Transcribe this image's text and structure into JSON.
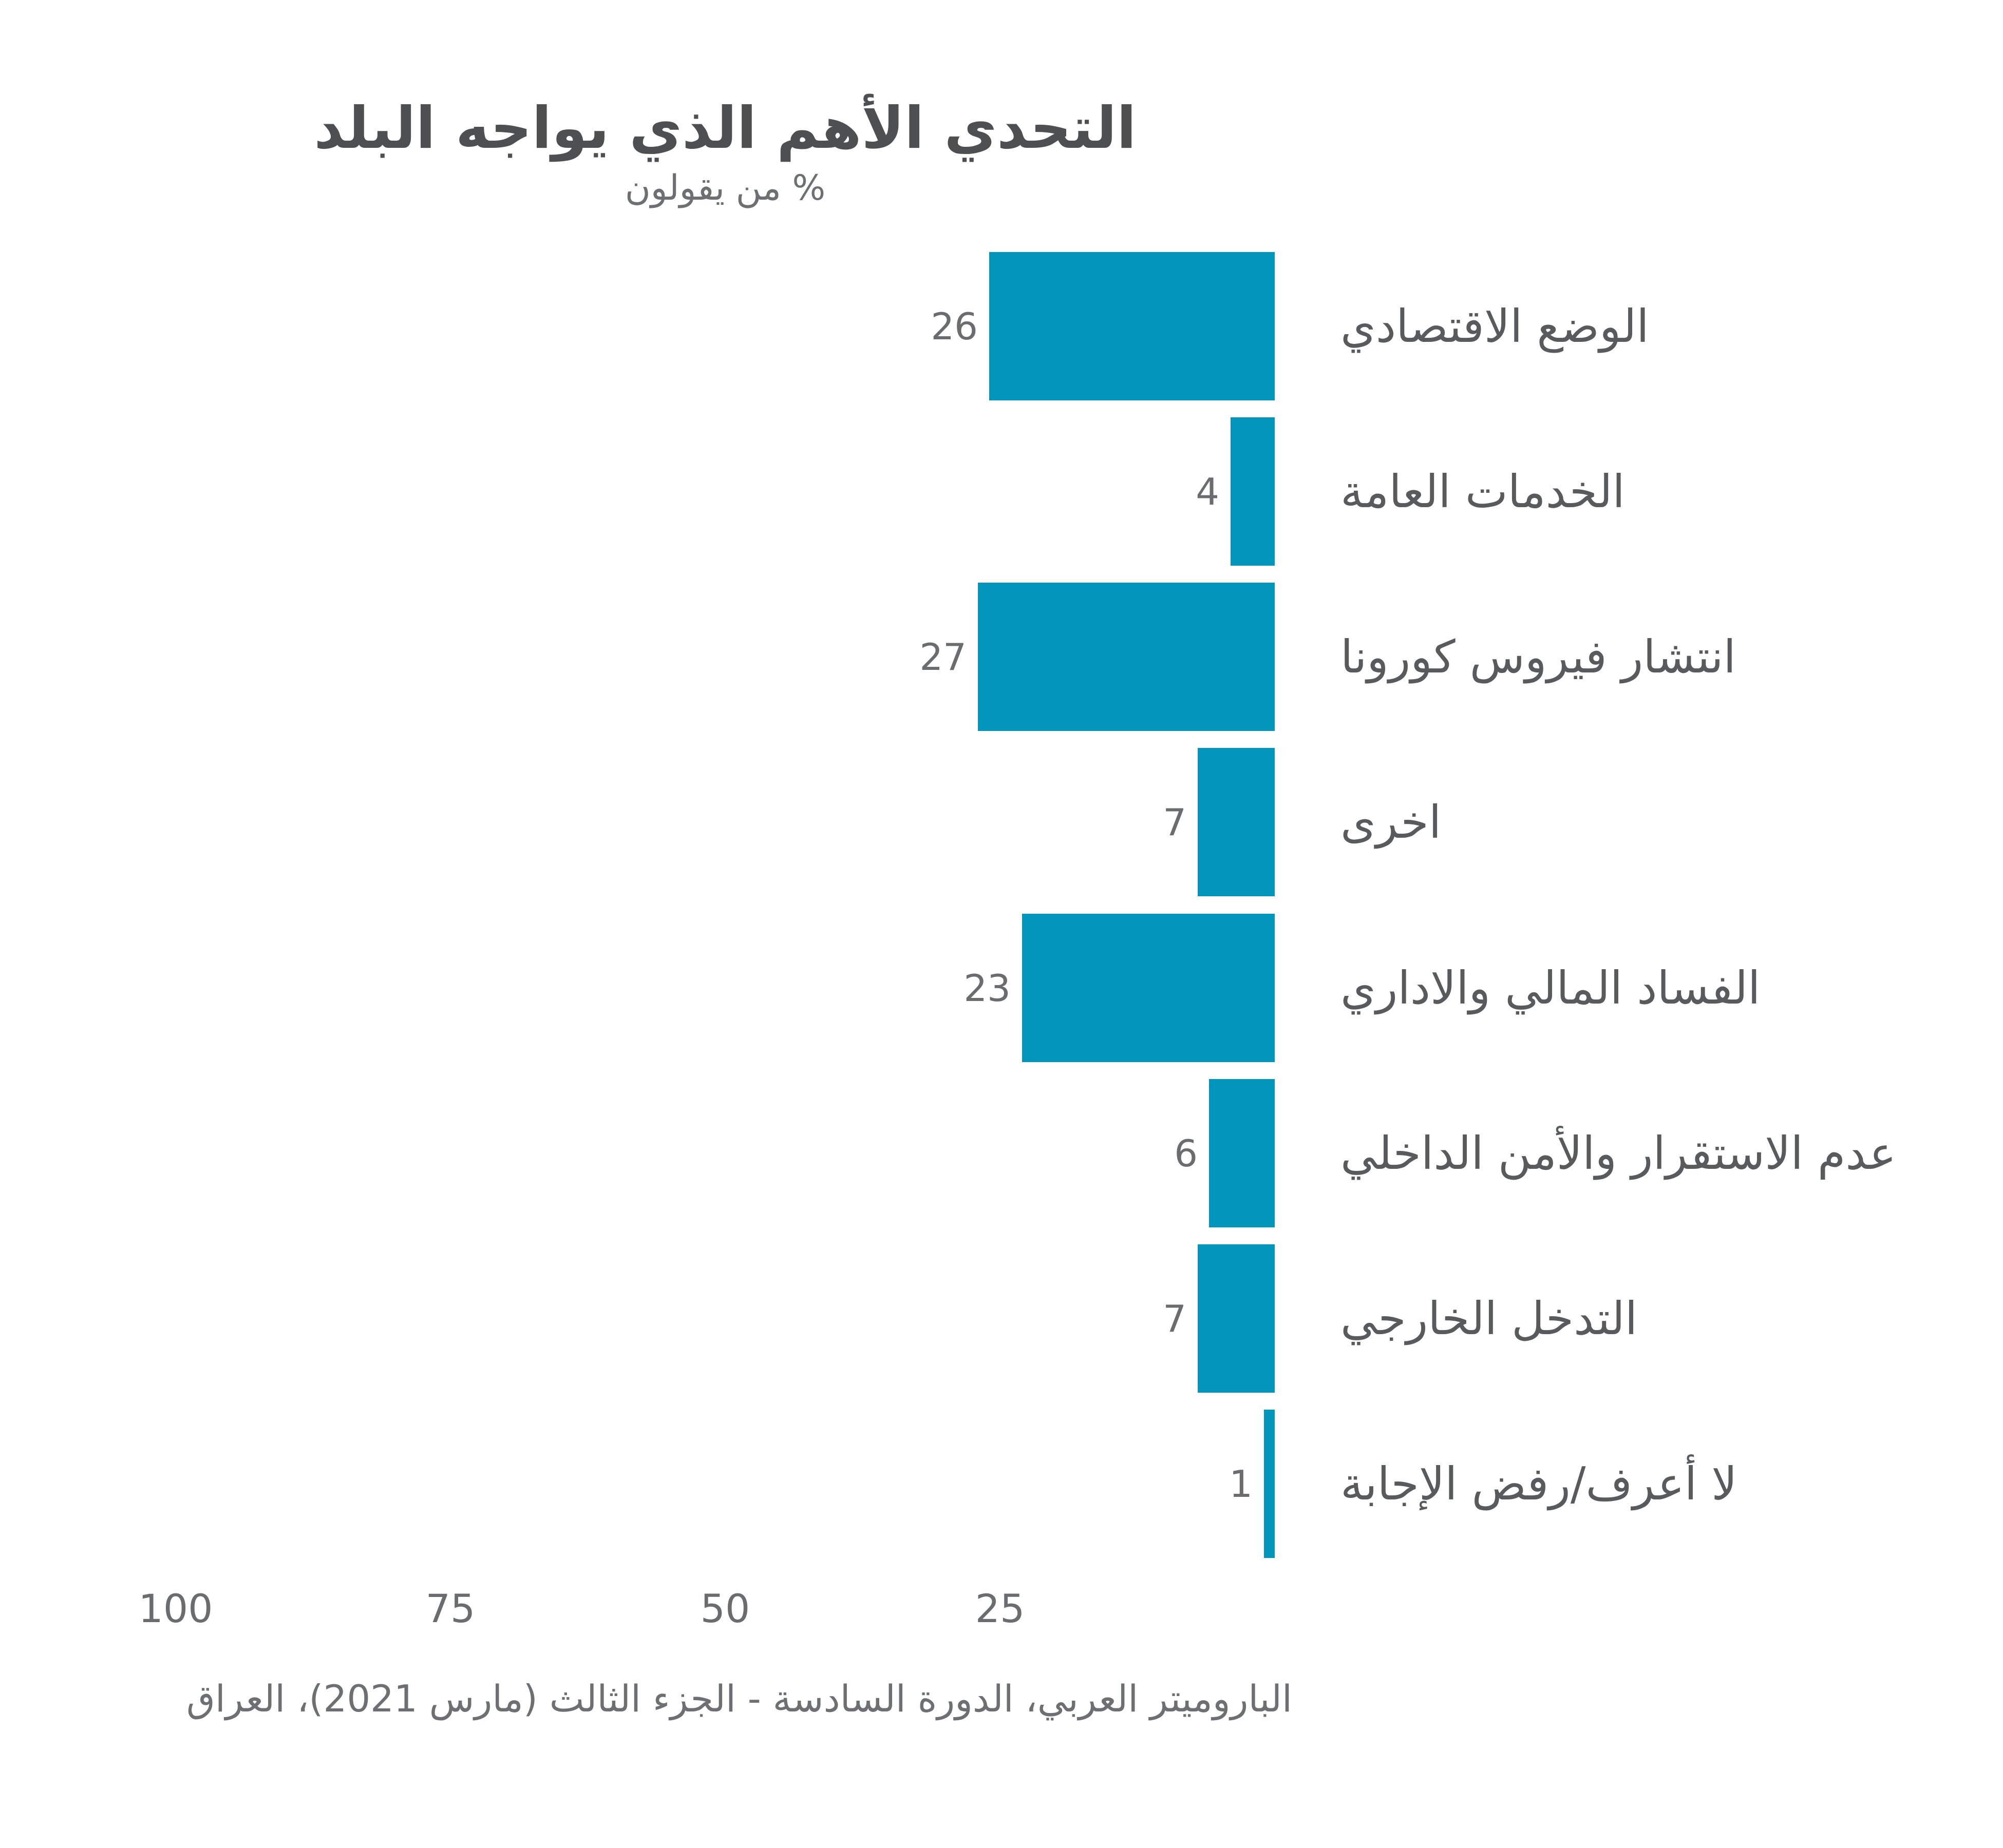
{
  "header": {
    "title": "التحدي الأهم الذي يواجه البلد",
    "subtitle": "% من يقولون"
  },
  "footer": {
    "source": "الباروميتر العربي، الدورة السادسة - الجزء الثالث (مارس 2021)، العراق"
  },
  "colors": {
    "bar": "#0296bd",
    "title_text": "#4e4f51",
    "category_text": "#595a5c",
    "value_text": "#6b6c6e",
    "subtitle_text": "#6e6f72",
    "background": "#ffffff"
  },
  "chart_data": {
    "type": "bar",
    "orientation": "horizontal",
    "direction": "rtl",
    "title": "التحدي الأهم الذي يواجه البلد",
    "subtitle": "% من يقولون",
    "source": "الباروميتر العربي، الدورة السادسة - الجزء الثالث (مارس 2021)، العراق",
    "categories": [
      "الوضع الاقتصادي",
      "الخدمات العامة",
      "انتشار فيروس كورونا",
      "اخرى",
      "الفساد المالي والاداري",
      "عدم الاستقرار والأمن الداخلي",
      "التدخل الخارجي",
      "لا أعرف/رفض الإجابة"
    ],
    "values": [
      26,
      4,
      27,
      7,
      23,
      6,
      7,
      1
    ],
    "value_labels_shown": true,
    "x_ticks": [
      100,
      75,
      50,
      25
    ],
    "xlim": [
      0,
      100
    ],
    "grid": false,
    "legend": false
  }
}
